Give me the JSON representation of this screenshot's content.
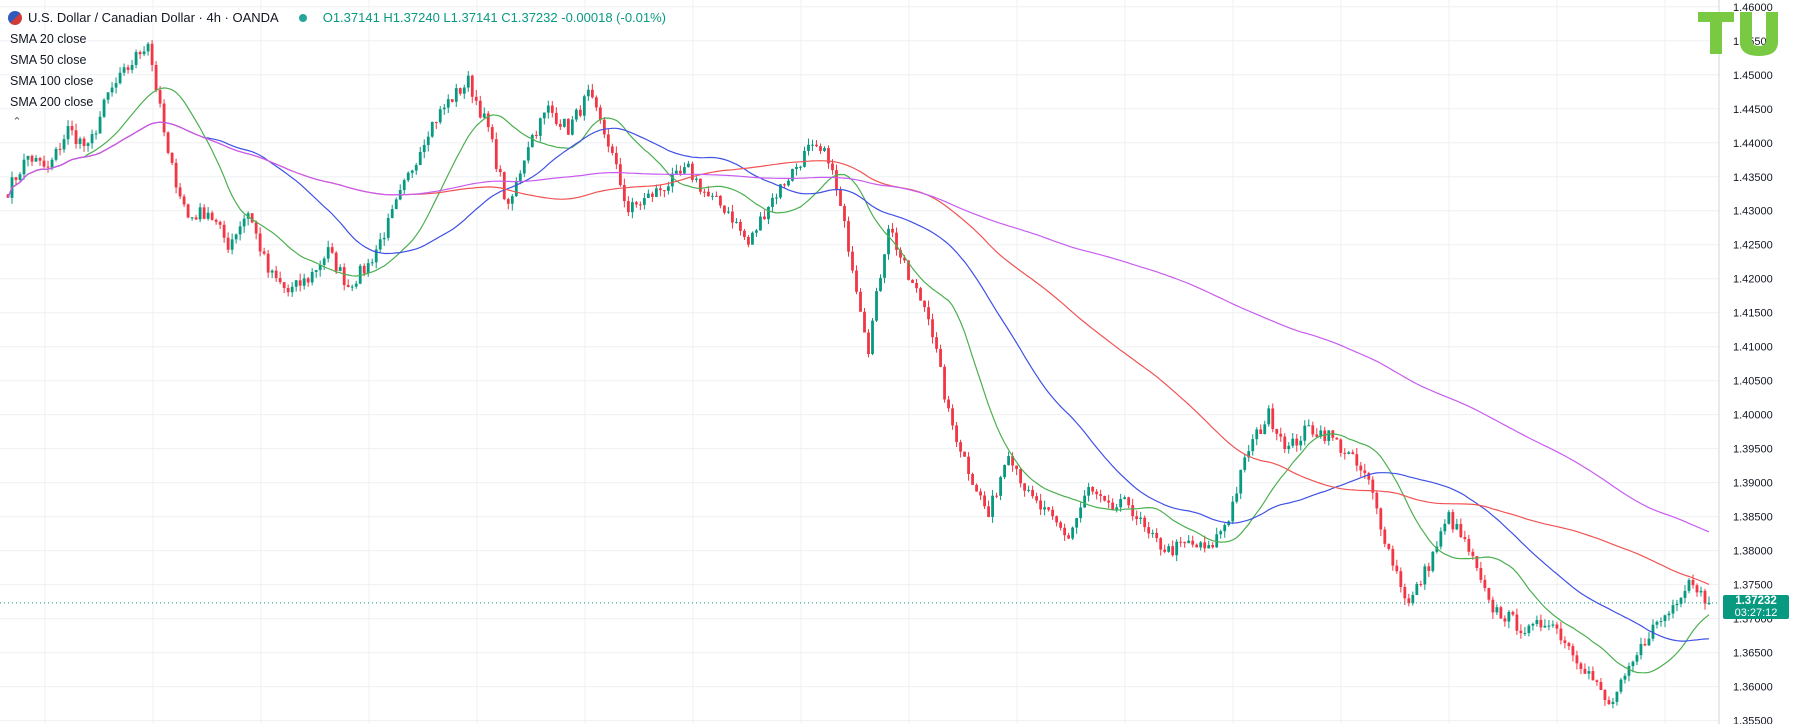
{
  "legend": {
    "title": "U.S. Dollar / Canadian Dollar · 4h · OANDA",
    "ohlc": "O1.37141  H1.37240  L1.37141  C1.37232  -0.00018 (-0.01%)",
    "indicators": [
      "SMA 20 close",
      "SMA 50 close",
      "SMA 100 close",
      "SMA 200 close"
    ],
    "collapse_icon": "chevron-up-icon"
  },
  "last_price": {
    "value": "1.37232",
    "countdown": "03:27:12"
  },
  "colors": {
    "up": "#089981",
    "down": "#f23645",
    "sma20": "#4caf50",
    "sma50": "#3f51e6",
    "sma100": "#f05454",
    "sma200": "#c85cf0",
    "grid": "#eef0f3"
  },
  "chart_data": {
    "type": "candlestick",
    "symbol": "USDCAD",
    "interval": "4h",
    "ylim": [
      1.3545,
      1.461
    ],
    "y_ticks": [
      "1.46000",
      "1.45500",
      "1.45000",
      "1.44500",
      "1.44000",
      "1.43500",
      "1.43000",
      "1.42500",
      "1.42000",
      "1.41500",
      "1.41000",
      "1.40500",
      "1.40000",
      "1.39500",
      "1.39000",
      "1.38500",
      "1.38000",
      "1.37500",
      "1.37000",
      "1.36500",
      "1.36000",
      "1.35500"
    ],
    "close_path": [
      1.433,
      1.438,
      1.436,
      1.442,
      1.439,
      1.447,
      1.451,
      1.455,
      1.438,
      1.429,
      1.43,
      1.425,
      1.43,
      1.421,
      1.418,
      1.42,
      1.424,
      1.419,
      1.422,
      1.428,
      1.435,
      1.442,
      1.446,
      1.449,
      1.442,
      1.43,
      1.44,
      1.445,
      1.442,
      1.447,
      1.44,
      1.43,
      1.432,
      1.434,
      1.436,
      1.432,
      1.43,
      1.425,
      1.431,
      1.435,
      1.439,
      1.438,
      1.425,
      1.41,
      1.428,
      1.42,
      1.415,
      1.4,
      1.392,
      1.385,
      1.395,
      1.388,
      1.385,
      1.382,
      1.389,
      1.386,
      1.387,
      1.382,
      1.38,
      1.381,
      1.38,
      1.385,
      1.395,
      1.4,
      1.395,
      1.398,
      1.397,
      1.394,
      1.39,
      1.38,
      1.372,
      1.378,
      1.385,
      1.38,
      1.372,
      1.37,
      1.368,
      1.37,
      1.366,
      1.362,
      1.357,
      1.362,
      1.368,
      1.371,
      1.376,
      1.3723
    ],
    "candles_per_step": 5,
    "sma_periods": [
      20,
      50,
      100,
      200
    ],
    "sma_names": [
      "SMA 20 close",
      "SMA 50 close",
      "SMA 100 close",
      "SMA 200 close"
    ],
    "last_price": 1.37232
  }
}
